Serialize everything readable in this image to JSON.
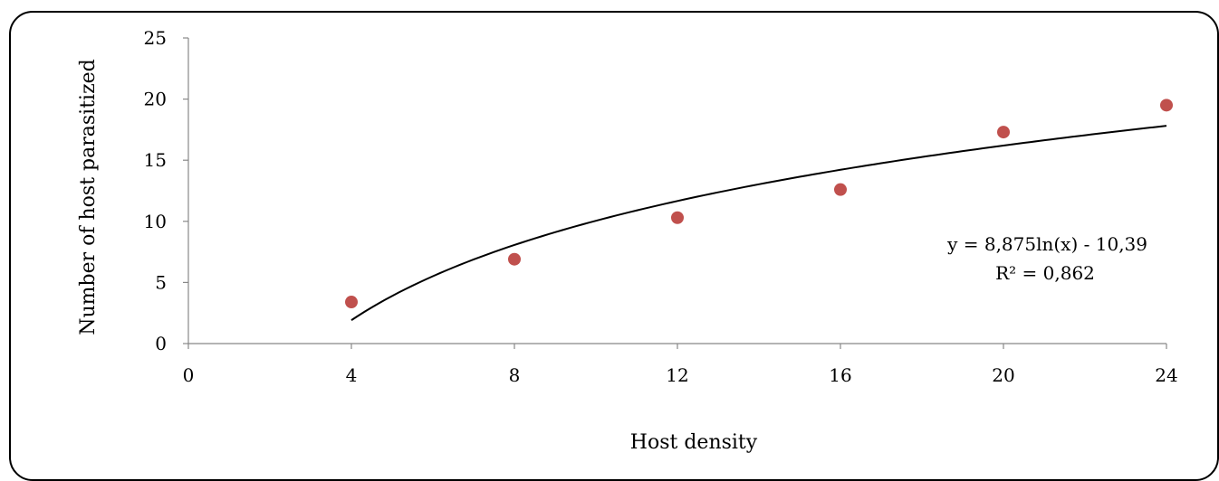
{
  "chart_data": {
    "type": "scatter",
    "xlabel": "Host density",
    "ylabel": "Number of host parasitized",
    "xlim": [
      0,
      24
    ],
    "ylim": [
      0,
      25
    ],
    "x_ticks": [
      0,
      4,
      8,
      12,
      16,
      20,
      24
    ],
    "y_ticks": [
      0,
      5,
      10,
      15,
      20,
      25
    ],
    "grid": false,
    "series": [
      {
        "x": [
          4,
          8,
          12,
          16,
          20,
          24
        ],
        "y": [
          3.4,
          6.9,
          10.3,
          12.6,
          17.3,
          19.5
        ],
        "color": "#c0504d"
      }
    ],
    "trendline": {
      "type": "logarithmic",
      "a": 8.875,
      "b": -10.39,
      "x_range": [
        4,
        24
      ],
      "color": "#000000",
      "equation_label": "y = 8,875ln(x) - 10,39",
      "r2_label": "R² = 0,862"
    }
  }
}
